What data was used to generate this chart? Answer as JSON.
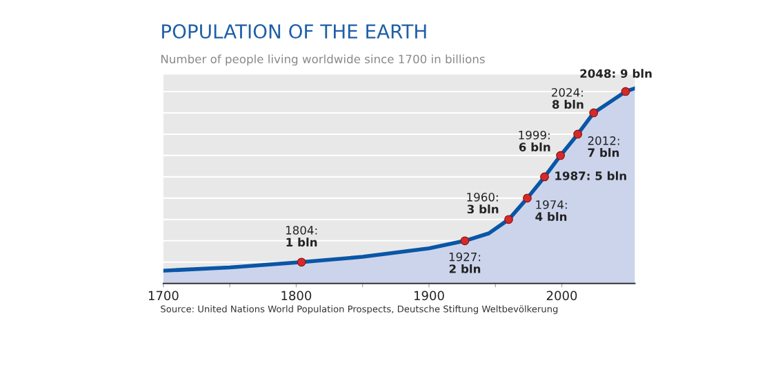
{
  "chart_data": {
    "type": "area",
    "title": "POPULATION OF THE EARTH",
    "subtitle": "Number of people living worldwide since 1700 in billions",
    "x": [
      1700,
      1750,
      1804,
      1850,
      1900,
      1927,
      1945,
      1960,
      1974,
      1987,
      1999,
      2012,
      2024,
      2048,
      2055
    ],
    "series": [
      {
        "color": "#0a56a6",
        "values": [
          0.6,
          0.75,
          1,
          1.25,
          1.65,
          2,
          2.35,
          3,
          4,
          5,
          6,
          7,
          8,
          9,
          9.15
        ]
      },
      {
        "type": "scatter",
        "marker": "circle",
        "color": "#d42a2a",
        "x": [
          1804,
          1927,
          1960,
          1974,
          1987,
          1999,
          2012,
          2024,
          2048
        ],
        "values": [
          1,
          2,
          3,
          4,
          5,
          6,
          7,
          8,
          9
        ],
        "value_labels": [
          "1804:\n1 bln",
          "1927:\n2 bln",
          "1960:\n3 bln",
          "1974:\n4 bln",
          "1987: 5 bln",
          "1999:\n6 bln",
          "2012:\n7 bln",
          "2024:\n8 bln",
          "2048: 9 bln"
        ]
      }
    ],
    "xlim": [
      1700,
      2055
    ],
    "xticks": [
      1700,
      {
        "value": 1750,
        "label": null
      },
      1800,
      {
        "value": 1850,
        "label": null
      },
      1900,
      {
        "value": 1950,
        "label": null
      },
      2000
    ],
    "ylim": [
      0,
      9.8
    ],
    "yticks": [
      {
        "value": 1,
        "label": null
      },
      {
        "value": 2,
        "label": null
      },
      {
        "value": 3,
        "label": null
      },
      {
        "value": 4,
        "label": null
      },
      {
        "value": 5,
        "label": null
      },
      {
        "value": 6,
        "label": null
      },
      {
        "value": 7,
        "label": null
      },
      {
        "value": 8,
        "label": null
      },
      {
        "value": 9,
        "label": null
      }
    ],
    "tick_labels": "x",
    "grid": "y",
    "annotations": [
      "Source: United Nations World Population Prospects, Deutsche Stiftung Weltbevölkerung"
    ]
  }
}
